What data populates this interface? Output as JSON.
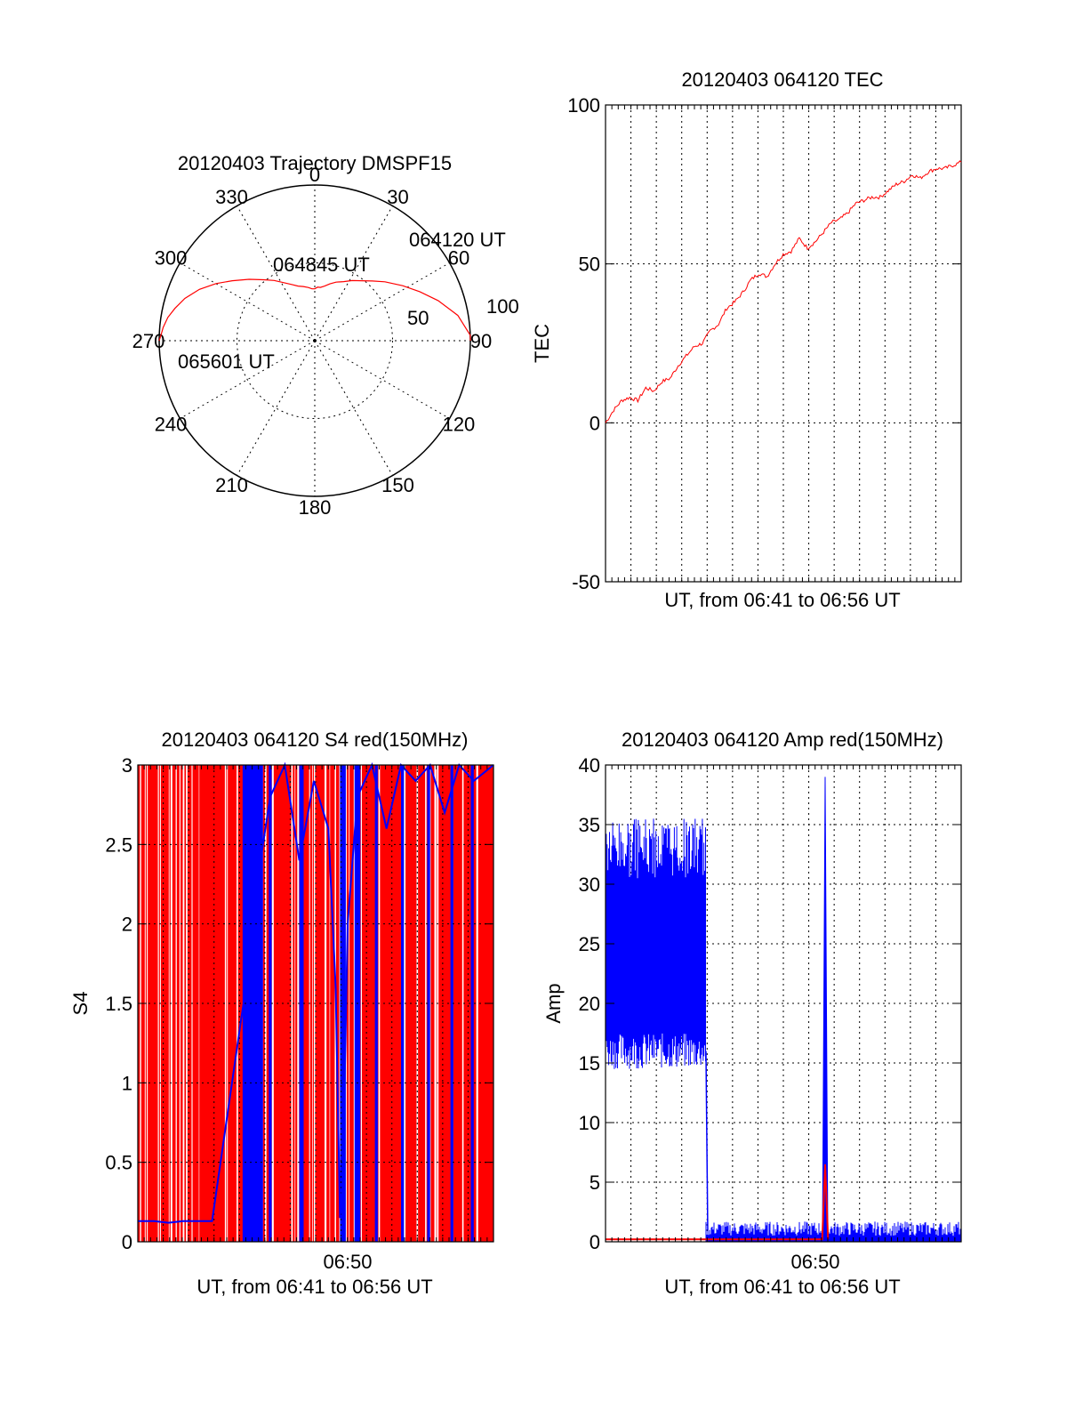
{
  "colors": {
    "series_red": "#ff0000",
    "series_blue": "#0000ff",
    "axes": "#000000",
    "background": "#ffffff"
  },
  "chart_data": [
    {
      "type": "polar",
      "title": "20120403 Trajectory DMSPF15",
      "angle_labels": [
        "0",
        "30",
        "60",
        "90",
        "120",
        "150",
        "180",
        "210",
        "240",
        "270",
        "300",
        "330"
      ],
      "radius_labels": [
        "50",
        "100"
      ],
      "series": [
        {
          "color": "#ff0000",
          "azimuth": [
            90,
            88,
            80,
            72,
            65,
            58,
            50,
            44,
            38,
            32,
            26,
            20,
            15,
            10,
            6,
            3,
            0,
            357,
            353,
            348,
            343,
            338,
            332,
            326,
            320,
            313,
            306,
            300,
            294,
            288,
            283,
            279,
            275,
            272,
            270
          ],
          "elevation": [
            0,
            0,
            6,
            15,
            23,
            30,
            37,
            42,
            46,
            49,
            52,
            54,
            56,
            58,
            59,
            59,
            60,
            60,
            59,
            58,
            57,
            55,
            52,
            48,
            44,
            38,
            31,
            24,
            17,
            11,
            7,
            4,
            2,
            1,
            0
          ]
        }
      ],
      "annotations": [
        {
          "text": "064120 UT"
        },
        {
          "text": "064845 UT"
        },
        {
          "text": "065601 UT"
        }
      ]
    },
    {
      "type": "line",
      "title": "20120403 064120 TEC",
      "xlabel": "UT, from 06:41 to 06:56 UT",
      "ylabel": "TEC",
      "xlim": [
        6.6889,
        6.9336
      ],
      "ylim": [
        -50,
        100
      ],
      "yticks": [
        -50,
        0,
        50,
        100
      ],
      "grid": true,
      "series": [
        {
          "color": "#ff0000",
          "x": [
            6.6889,
            6.6945,
            6.7,
            6.7055,
            6.7111,
            6.7166,
            6.7222,
            6.7278,
            6.7333,
            6.7389,
            6.7444,
            6.75,
            6.7555,
            6.7611,
            6.7666,
            6.7722,
            6.7778,
            6.7833,
            6.7889,
            6.7944,
            6.8,
            6.8055,
            6.8111,
            6.8166,
            6.8222,
            6.8278,
            6.8333,
            6.8389,
            6.8444,
            6.85,
            6.8555,
            6.8611,
            6.8666,
            6.8722,
            6.8778,
            6.8833,
            6.8889,
            6.8944,
            6.9,
            6.9055,
            6.9111,
            6.9166,
            6.9222,
            6.9278,
            6.9336
          ],
          "y": [
            0,
            4,
            7,
            8,
            7,
            11,
            10,
            13,
            14,
            18,
            21,
            24,
            25,
            29,
            31,
            36,
            38,
            41,
            45,
            47,
            46,
            50,
            53,
            54,
            58,
            55,
            57,
            60,
            63,
            64,
            66,
            69,
            70,
            71,
            71,
            73,
            75,
            76,
            78,
            77,
            79,
            80,
            80,
            81,
            82
          ]
        }
      ]
    },
    {
      "type": "line",
      "title": "20120403 064120 S4 red(150MHz)",
      "xlabel": "UT, from 06:41 to 06:56 UT",
      "ylabel": "S4",
      "xlim": [
        6.6889,
        6.9336
      ],
      "ylim": [
        0,
        3
      ],
      "yticks": [
        "0",
        "0.5",
        "1",
        "1.5",
        "2",
        "2.5",
        "3"
      ],
      "xticks": [
        "06:50"
      ],
      "xtick_values": [
        6.8333
      ],
      "grid": true,
      "series": [
        {
          "color": "#ff0000",
          "style": "saturated vertical spikes from 0 to 3 across the whole interval"
        },
        {
          "color": "#0000ff",
          "x": [
            6.6889,
            6.7,
            6.71,
            6.72,
            6.73,
            6.74,
            6.76,
            6.765,
            6.77,
            6.78,
            6.79,
            6.8,
            6.81,
            6.82,
            6.825,
            6.828,
            6.83,
            6.8333,
            6.84,
            6.85,
            6.86,
            6.87,
            6.88,
            6.89,
            6.9,
            6.91,
            6.92,
            6.9336
          ],
          "y": [
            0.13,
            0.13,
            0.12,
            0.13,
            0.13,
            0.13,
            1.4,
            1.7,
            2.2,
            2.8,
            3.0,
            2.4,
            2.9,
            2.6,
            1.6,
            0.15,
            0.4,
            2.0,
            2.8,
            3.0,
            2.6,
            3.0,
            2.9,
            3.0,
            2.7,
            3.0,
            2.9,
            3.0
          ]
        }
      ]
    },
    {
      "type": "line",
      "title": "20120403 064120 Amp red(150MHz)",
      "xlabel": "UT, from 06:41 to 06:56 UT",
      "ylabel": "Amp",
      "xlim": [
        6.6889,
        6.9336
      ],
      "ylim": [
        0,
        40
      ],
      "yticks": [
        "0",
        "5",
        "10",
        "15",
        "20",
        "25",
        "30",
        "35",
        "40"
      ],
      "xticks": [
        "06:50"
      ],
      "xtick_values": [
        6.8333
      ],
      "grid": true,
      "series": [
        {
          "color": "#0000ff",
          "style": "dense noisy band 16 to 35 from 06:41 to 06:48, drop to ~1 after 06:48, spike to 39 near 06:50",
          "band_x": [
            6.6889,
            6.758
          ],
          "band_low": 16,
          "band_high": 35,
          "tail_x": [
            6.758,
            6.9336
          ],
          "tail_level": 1.0,
          "spike_x": 6.84,
          "spike_peak": 39
        },
        {
          "color": "#ff0000",
          "x": [
            6.6889,
            6.758,
            6.838,
            6.84,
            6.842
          ],
          "y": [
            0.2,
            0.2,
            0.2,
            6.5,
            0.2
          ]
        }
      ]
    }
  ]
}
